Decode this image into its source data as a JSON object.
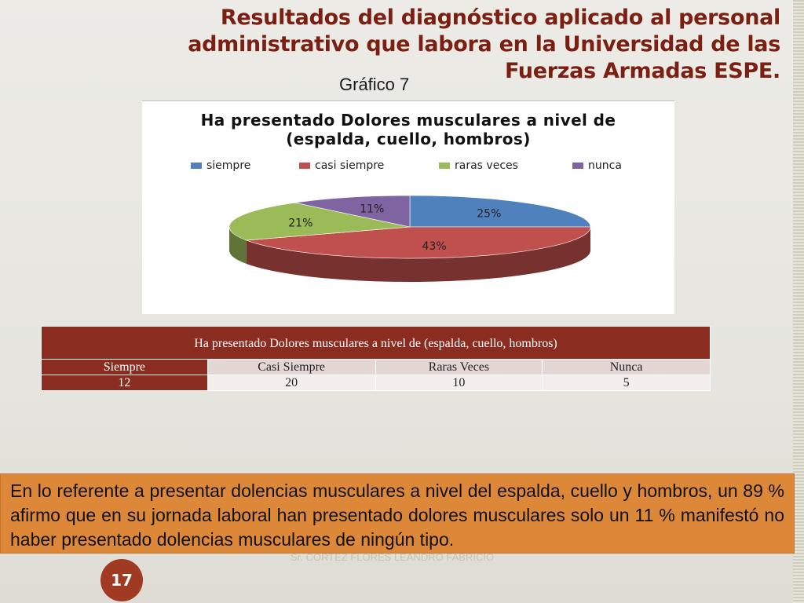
{
  "slide": {
    "title": "Resultados del diagnóstico aplicado al personal administrativo que labora en la Universidad de las Fuerzas Armadas ESPE.",
    "figure_label": "Gráfico 7",
    "conclusion": "En lo referente a presentar dolencias musculares a nivel del espalda, cuello y hombros, un 89 % afirmo que en su jornada laboral han presentado dolores musculares solo un 11 % manifestó no haber presentado dolencias musculares de ningún tipo.",
    "author": "Sr. CORTEZ FLORES LEANDRO FABRICIO",
    "page_number": "17"
  },
  "chart_data": {
    "type": "pie",
    "title_lines": [
      "Ha presentado Dolores musculares a nivel de",
      "(espalda, cuello, hombros)"
    ],
    "legend_position": "top",
    "categories": [
      "siempre",
      "casi siempre",
      "raras veces",
      "nunca"
    ],
    "values": [
      25,
      43,
      21,
      11
    ],
    "data_labels": [
      "25%",
      "43%",
      "21%",
      "11%"
    ],
    "colors": [
      "#4f81bd",
      "#c0504d",
      "#9bbb59",
      "#8064a2"
    ]
  },
  "table": {
    "header": "Ha presentado Dolores musculares a nivel de (espalda, cuello, hombros)",
    "columns": [
      "Siempre",
      "Casi Siempre",
      "Raras Veces",
      "Nunca"
    ],
    "values": [
      "12",
      "20",
      "10",
      "5"
    ]
  }
}
